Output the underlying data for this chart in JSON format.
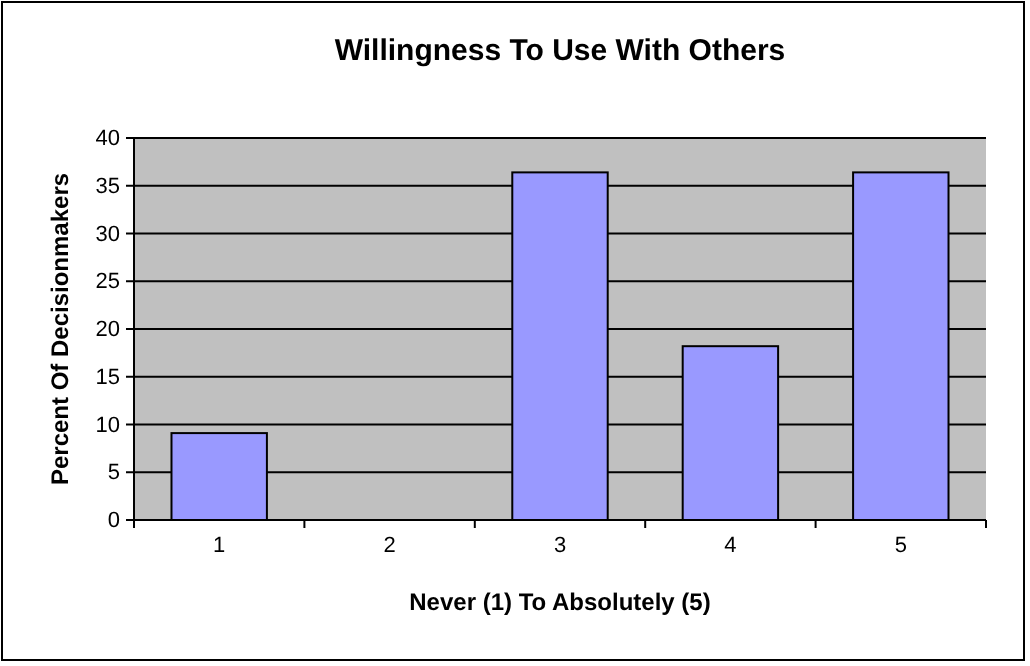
{
  "chart_data": {
    "type": "bar",
    "title": "Willingness To Use With Others",
    "xlabel": "Never (1) To Absolutely (5)",
    "ylabel": "Percent Of Decisionmakers",
    "categories": [
      "1",
      "2",
      "3",
      "4",
      "5"
    ],
    "values": [
      9.1,
      0,
      36.4,
      18.2,
      36.4
    ],
    "color": "#9999ff",
    "ylim": [
      0,
      40
    ],
    "yticks": [
      0,
      5,
      10,
      15,
      20,
      25,
      30,
      35,
      40
    ],
    "grid": "y"
  }
}
